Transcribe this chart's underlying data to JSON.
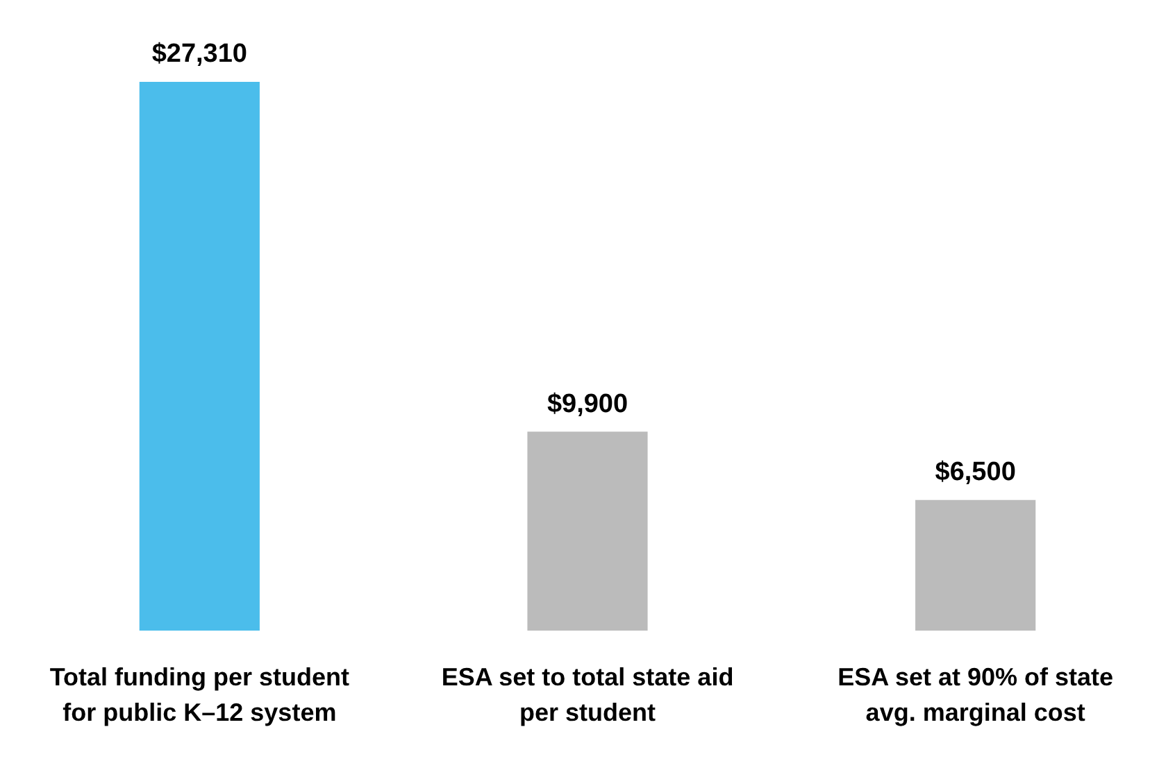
{
  "chart_data": {
    "type": "bar",
    "categories": [
      "Total funding per student for public K–12 system",
      "ESA set to total state aid per student",
      "ESA set at 90% of state avg. marginal cost"
    ],
    "values": [
      27310,
      9900,
      6500
    ],
    "colors": [
      "#4bbdeb",
      "#bbbbbb",
      "#bbbbbb"
    ],
    "value_labels": [
      "$27,310",
      "$9,900",
      "$6,500"
    ],
    "grid": false,
    "legend": false
  }
}
